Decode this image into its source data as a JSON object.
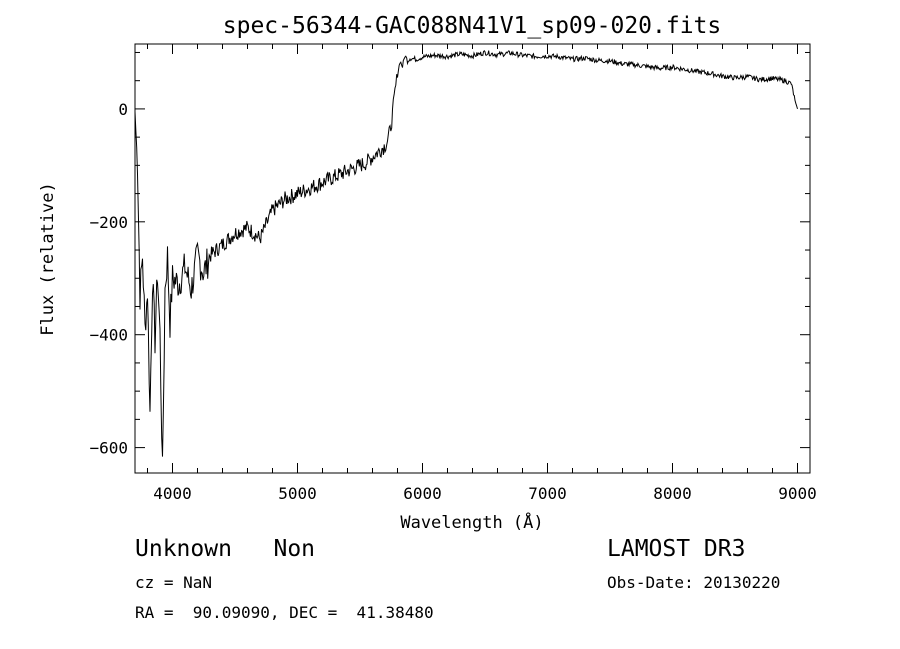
{
  "chart_data": {
    "type": "line",
    "title": "spec-56344-GAC088N41V1_sp09-020.fits",
    "xlabel": "Wavelength (Å)",
    "ylabel": "Flux (relative)",
    "xlim": [
      3700,
      9100
    ],
    "ylim": [
      -645,
      115
    ],
    "xticks": [
      4000,
      5000,
      6000,
      7000,
      8000,
      9000
    ],
    "xtick_labels": [
      "4000",
      "5000",
      "6000",
      "7000",
      "8000",
      "9000"
    ],
    "yticks": [
      0,
      -200,
      -400,
      -600
    ],
    "ytick_labels": [
      "0",
      "−200",
      "−400",
      "−600"
    ],
    "grid": false,
    "series": [
      {
        "name": "flux",
        "x": [
          3700,
          3720,
          3740,
          3760,
          3780,
          3800,
          3820,
          3840,
          3860,
          3880,
          3900,
          3920,
          3940,
          3960,
          3980,
          4000,
          4050,
          4100,
          4150,
          4200,
          4250,
          4300,
          4400,
          4500,
          4600,
          4700,
          4800,
          4900,
          5000,
          5100,
          5200,
          5300,
          5400,
          5500,
          5550,
          5600,
          5650,
          5700,
          5720,
          5740,
          5760,
          5780,
          5800,
          5820,
          5840,
          5860,
          5880,
          5900,
          5950,
          6000,
          6100,
          6200,
          6300,
          6400,
          6500,
          6600,
          6700,
          6800,
          6900,
          7000,
          7100,
          7200,
          7300,
          7400,
          7500,
          7600,
          7700,
          7800,
          7900,
          8000,
          8100,
          8200,
          8300,
          8400,
          8500,
          8600,
          8700,
          8800,
          8900,
          8950,
          8980,
          9000
        ],
        "y": [
          -5,
          -100,
          -330,
          -260,
          -390,
          -320,
          -540,
          -300,
          -410,
          -290,
          -400,
          -645,
          -320,
          -260,
          -380,
          -300,
          -310,
          -280,
          -320,
          -260,
          -290,
          -260,
          -240,
          -220,
          -210,
          -230,
          -180,
          -160,
          -150,
          -140,
          -130,
          -120,
          -110,
          -100,
          -95,
          -85,
          -75,
          -65,
          -55,
          -40,
          -10,
          30,
          60,
          85,
          75,
          95,
          85,
          90,
          88,
          92,
          95,
          93,
          97,
          94,
          100,
          96,
          99,
          95,
          93,
          94,
          92,
          88,
          90,
          86,
          85,
          80,
          78,
          75,
          72,
          74,
          70,
          66,
          63,
          58,
          55,
          57,
          52,
          54,
          50,
          45,
          15,
          0
        ]
      }
    ]
  },
  "footer": {
    "class_line": "Unknown   Non",
    "survey": "LAMOST DR3",
    "cz": "cz = NaN",
    "obs_date": "Obs-Date: 20130220",
    "radec": "RA =  90.09090, DEC =  41.38480"
  }
}
